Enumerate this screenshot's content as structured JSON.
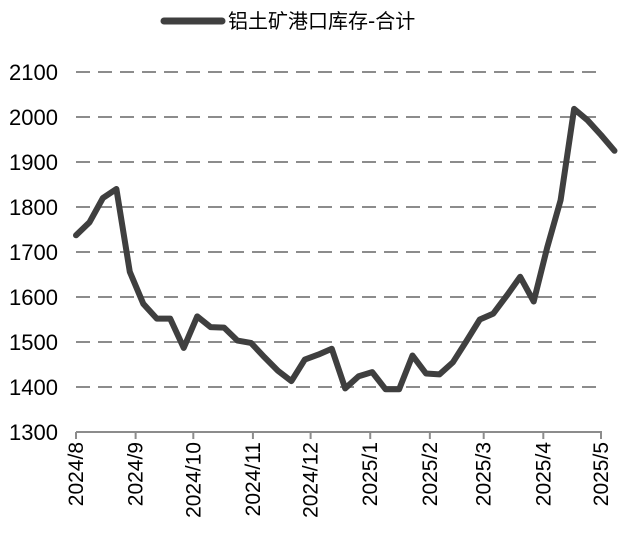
{
  "chart_data": {
    "type": "line",
    "title": "",
    "xlabel": "",
    "ylabel": "",
    "ylim": [
      1300,
      2100
    ],
    "yticks": [
      1300,
      1400,
      1500,
      1600,
      1700,
      1800,
      1900,
      2000,
      2100
    ],
    "grid": "horizontal-dashed",
    "legend_position": "top-center",
    "line_color": "#3f3f3f",
    "x_tick_labels": [
      "2024/8",
      "2024/9",
      "2024/10",
      "2024/11",
      "2024/12",
      "2025/1",
      "2025/2",
      "2025/3",
      "2025/4",
      "2025/5"
    ],
    "x_tick_dates": [
      "2024-08-01",
      "2024-09-01",
      "2024-10-01",
      "2024-11-01",
      "2024-12-01",
      "2025-01-01",
      "2025-02-01",
      "2025-03-01",
      "2025-04-01",
      "2025-05-01"
    ],
    "series": [
      {
        "name": "铝土矿港口库存-合计",
        "x": [
          "2024-08-01",
          "2024-08-08",
          "2024-08-15",
          "2024-08-22",
          "2024-08-29",
          "2024-09-05",
          "2024-09-12",
          "2024-09-19",
          "2024-09-26",
          "2024-10-03",
          "2024-10-10",
          "2024-10-17",
          "2024-10-24",
          "2024-10-31",
          "2024-11-07",
          "2024-11-14",
          "2024-11-21",
          "2024-11-28",
          "2024-12-05",
          "2024-12-12",
          "2024-12-19",
          "2024-12-26",
          "2025-01-02",
          "2025-01-09",
          "2025-01-16",
          "2025-01-23",
          "2025-01-30",
          "2025-02-06",
          "2025-02-13",
          "2025-02-20",
          "2025-02-27",
          "2025-03-06",
          "2025-03-13",
          "2025-03-20",
          "2025-03-27",
          "2025-04-03",
          "2025-04-10",
          "2025-04-17",
          "2025-04-24",
          "2025-05-01",
          "2025-05-08"
        ],
        "values": [
          1737,
          1766,
          1820,
          1840,
          1656,
          1585,
          1552,
          1552,
          1487,
          1557,
          1533,
          1532,
          1503,
          1498,
          1466,
          1436,
          1413,
          1461,
          1472,
          1485,
          1397,
          1424,
          1433,
          1395,
          1395,
          1470,
          1430,
          1428,
          1455,
          1502,
          1550,
          1563,
          1603,
          1645,
          1590,
          1710,
          1815,
          2018,
          1993,
          1960,
          1925
        ]
      }
    ]
  }
}
